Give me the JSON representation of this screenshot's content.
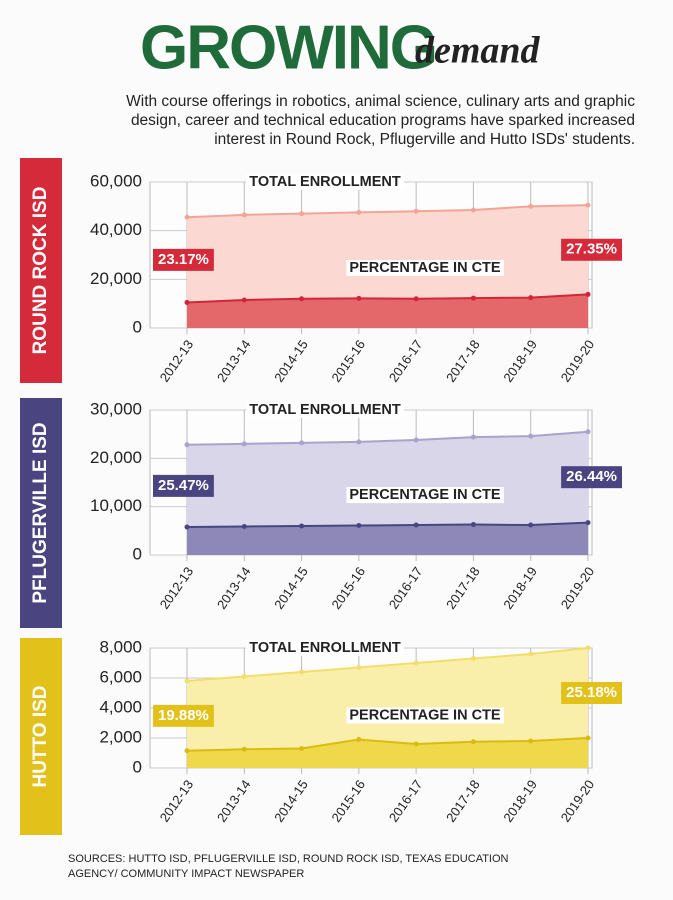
{
  "header": {
    "title": "GROWING",
    "subtitle": "demand",
    "description": "With course offerings in robotics, animal science, culinary arts and graphic design, career and technical education programs have sparked increased interest in Round Rock, Pflugerville and Hutto ISDs' students."
  },
  "sources": "SOURCES: HUTTO ISD, PFLUGERVILLE ISD, ROUND ROCK ISD, TEXAS EDUCATION AGENCY/ COMMUNITY IMPACT NEWSPAPER",
  "chart_data": [
    {
      "type": "area",
      "label": "ROUND ROCK ISD",
      "color": "#d42a3a",
      "categories": [
        "2012-13",
        "2013-14",
        "2014-15",
        "2015-16",
        "2016-17",
        "2017-18",
        "2018-19",
        "2019-20"
      ],
      "series": [
        {
          "name": "TOTAL ENROLLMENT",
          "color": "#f2a596",
          "fill_color": "#fbd9d2",
          "values": [
            45500,
            46500,
            47000,
            47500,
            48000,
            48500,
            50000,
            50500
          ]
        },
        {
          "name": "PERCENTAGE IN CTE",
          "color": "#cf2638",
          "fill_color": "#e4676a",
          "values": [
            10500,
            11500,
            12000,
            12200,
            12000,
            12300,
            12500,
            13800
          ]
        }
      ],
      "annotations": [
        "23.17%",
        "27.35%"
      ],
      "ylim": [
        0,
        60000
      ],
      "yticks": [
        0,
        {
          "value": 20000,
          "label": "20,000"
        },
        {
          "value": 40000,
          "label": "40,000"
        },
        {
          "value": 60000,
          "label": "60,000"
        }
      ],
      "grid": true
    },
    {
      "type": "area",
      "label": "PFLUGERVILLE ISD",
      "color": "#4a4580",
      "categories": [
        "2012-13",
        "2013-14",
        "2014-15",
        "2015-16",
        "2016-17",
        "2017-18",
        "2018-19",
        "2019-20"
      ],
      "series": [
        {
          "name": "TOTAL ENROLLMENT",
          "color": "#a9a3cc",
          "fill_color": "#d9d6ea",
          "values": [
            22800,
            23000,
            23200,
            23400,
            23800,
            24400,
            24600,
            25500
          ]
        },
        {
          "name": "PERCENTAGE IN CTE",
          "color": "#4a4580",
          "fill_color": "#8e88b8",
          "values": [
            5800,
            5900,
            6000,
            6100,
            6200,
            6300,
            6200,
            6700
          ]
        }
      ],
      "annotations": [
        "25.47%",
        "26.44%"
      ],
      "ylim": [
        0,
        30000
      ],
      "yticks": [
        0,
        {
          "value": 10000,
          "label": "10,000"
        },
        {
          "value": 20000,
          "label": "20,000"
        },
        {
          "value": 30000,
          "label": "30,000"
        }
      ],
      "grid": true
    },
    {
      "type": "area",
      "label": "HUTTO ISD",
      "color": "#e2c21a",
      "categories": [
        "2012-13",
        "2013-14",
        "2014-15",
        "2015-16",
        "2016-17",
        "2017-18",
        "2018-19",
        "2019-20"
      ],
      "series": [
        {
          "name": "TOTAL ENROLLMENT",
          "color": "#f2de6a",
          "fill_color": "#f9efaa",
          "values": [
            5800,
            6100,
            6400,
            6700,
            7000,
            7300,
            7600,
            8000
          ]
        },
        {
          "name": "PERCENTAGE IN CTE",
          "color": "#dcbb10",
          "fill_color": "#efd84a",
          "values": [
            1150,
            1250,
            1300,
            1900,
            1600,
            1750,
            1800,
            2000
          ]
        }
      ],
      "annotations": [
        "19.88%",
        "25.18%"
      ],
      "ylim": [
        0,
        8000
      ],
      "yticks": [
        0,
        {
          "value": 2000,
          "label": "2,000"
        },
        {
          "value": 4000,
          "label": "4,000"
        },
        {
          "value": 6000,
          "label": "6,000"
        },
        {
          "value": 8000,
          "label": "8,000"
        }
      ],
      "grid": true
    }
  ]
}
